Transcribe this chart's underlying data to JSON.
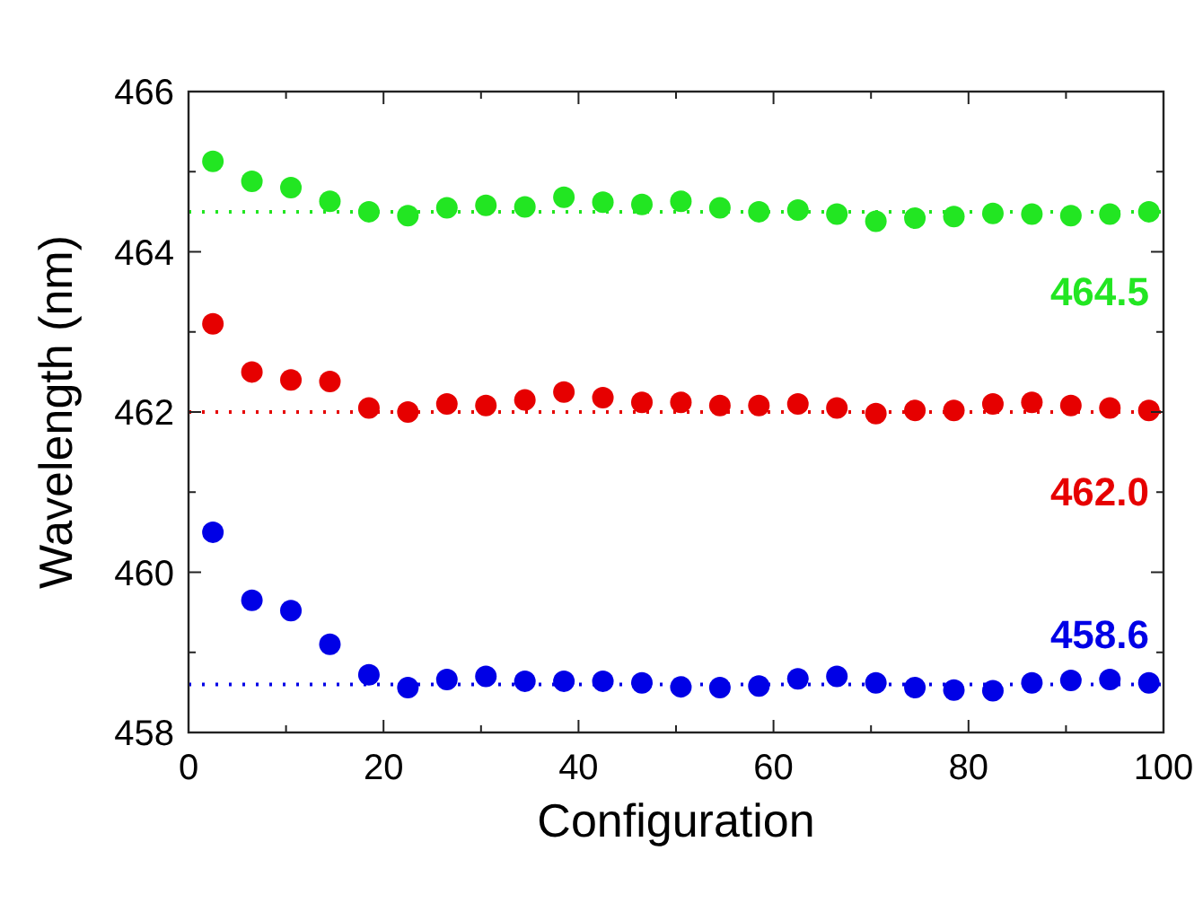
{
  "chart_data": {
    "type": "scatter",
    "xlabel": "Configuration",
    "ylabel": "Wavelength (nm)",
    "x": [
      2.5,
      6.5,
      10.5,
      14.5,
      18.5,
      22.5,
      26.5,
      30.5,
      34.5,
      38.5,
      42.5,
      46.5,
      50.5,
      54.5,
      58.5,
      62.5,
      66.5,
      70.5,
      74.5,
      78.5,
      82.5,
      86.5,
      90.5,
      94.5,
      98.5
    ],
    "series": [
      {
        "color": "#22e622",
        "values": [
          465.13,
          464.88,
          464.8,
          464.63,
          464.5,
          464.45,
          464.55,
          464.58,
          464.56,
          464.68,
          464.62,
          464.59,
          464.63,
          464.55,
          464.5,
          464.52,
          464.47,
          464.38,
          464.42,
          464.44,
          464.48,
          464.47,
          464.45,
          464.47,
          464.5
        ]
      },
      {
        "color": "#e60000",
        "values": [
          463.1,
          462.5,
          462.4,
          462.38,
          462.05,
          462.0,
          462.1,
          462.08,
          462.15,
          462.25,
          462.18,
          462.12,
          462.12,
          462.08,
          462.08,
          462.1,
          462.05,
          461.98,
          462.02,
          462.02,
          462.1,
          462.12,
          462.08,
          462.05,
          462.02
        ]
      },
      {
        "color": "#0000e6",
        "values": [
          460.5,
          459.65,
          459.52,
          459.1,
          458.72,
          458.56,
          458.66,
          458.7,
          458.64,
          458.64,
          458.64,
          458.62,
          458.57,
          458.56,
          458.58,
          458.67,
          458.7,
          458.62,
          458.56,
          458.53,
          458.52,
          458.62,
          458.65,
          458.66,
          458.62
        ]
      }
    ],
    "ref_lines": [
      {
        "axis": "y",
        "value": 464.5,
        "label": "464.5",
        "color": "#22e622",
        "line_style": "dotted"
      },
      {
        "axis": "y",
        "value": 462.0,
        "label": "462.0",
        "color": "#e60000",
        "line_style": "dotted"
      },
      {
        "axis": "y",
        "value": 458.6,
        "label": "458.6",
        "color": "#0000e6",
        "line_style": "dotted"
      }
    ],
    "marker": "circle",
    "grid": false,
    "xlim": [
      0,
      100
    ],
    "xticks": [
      0,
      {
        "value": 10,
        "label": null
      },
      20,
      {
        "value": 30,
        "label": null
      },
      40,
      {
        "value": 50,
        "label": null
      },
      60,
      {
        "value": 70,
        "label": null
      },
      80,
      {
        "value": 90,
        "label": null
      },
      100
    ],
    "ylim": [
      458,
      466
    ],
    "yticks": [
      458,
      {
        "value": 459,
        "label": null
      },
      460,
      {
        "value": 461,
        "label": null
      },
      462,
      {
        "value": 463,
        "label": null
      },
      464,
      {
        "value": 465,
        "label": null
      },
      466
    ]
  }
}
